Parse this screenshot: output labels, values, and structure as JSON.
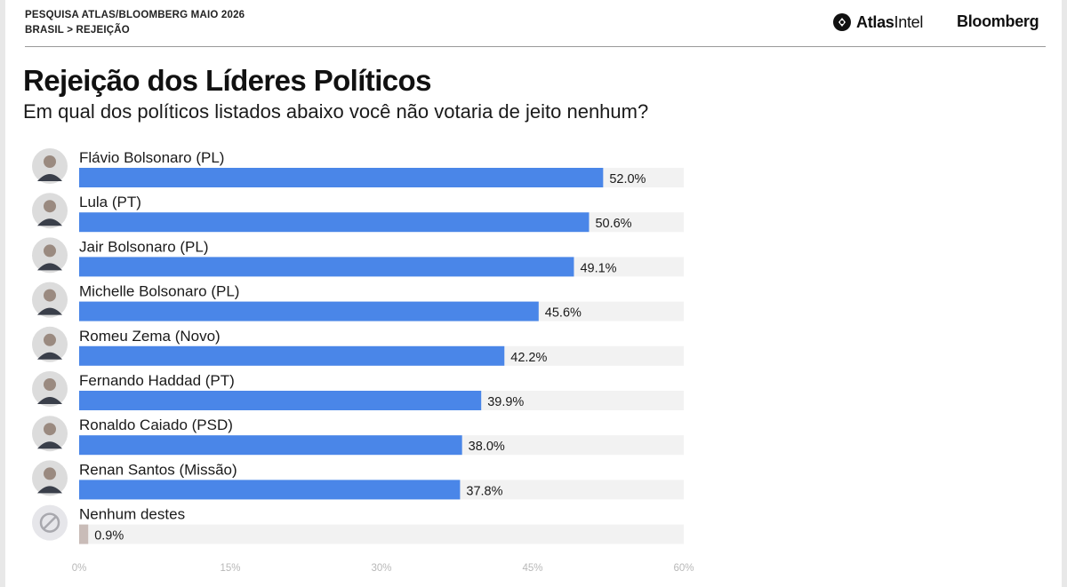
{
  "header": {
    "line1": "PESQUISA ATLAS/BLOOMBERG MAIO 2026",
    "line2": "BRASIL > REJEIÇÃO",
    "atlas_bold": "Atlas",
    "atlas_light": "Intel",
    "bloomberg": "Bloomberg"
  },
  "title": "Rejeição dos Líderes Políticos",
  "subtitle": "Em qual dos políticos listados abaixo você não votaria de jeito nenhum?",
  "colors": {
    "bar": "#4a86e8",
    "bar_none": "#c9bcb8",
    "track": "#f2f2f2",
    "avatar_bg": "#dcdcdc"
  },
  "chart_data": {
    "type": "bar",
    "orientation": "horizontal",
    "title": "Rejeição dos Líderes Políticos",
    "subtitle": "Em qual dos políticos listados abaixo você não votaria de jeito nenhum?",
    "categories": [
      "Flávio Bolsonaro (PL)",
      "Lula (PT)",
      "Jair Bolsonaro (PL)",
      "Michelle Bolsonaro (PL)",
      "Romeu Zema (Novo)",
      "Fernando Haddad (PT)",
      "Ronaldo Caiado (PSD)",
      "Renan Santos (Missão)",
      "Nenhum destes"
    ],
    "values": [
      52.0,
      50.6,
      49.1,
      45.6,
      42.2,
      39.9,
      38.0,
      37.8,
      0.9
    ],
    "value_labels": [
      "52.0%",
      "50.6%",
      "49.1%",
      "45.6%",
      "42.2%",
      "39.9%",
      "38.0%",
      "37.8%",
      "0.9%"
    ],
    "avatars": [
      "person-photo",
      "person-photo",
      "person-photo",
      "person-photo",
      "person-photo",
      "person-photo",
      "person-photo",
      "person-photo",
      "none-icon"
    ],
    "xlim": [
      0,
      60
    ],
    "xticks": [
      0,
      15,
      30,
      45,
      60
    ],
    "xtick_labels": [
      "0%",
      "15%",
      "30%",
      "45%",
      "60%"
    ],
    "grid": false,
    "legend": "none"
  }
}
